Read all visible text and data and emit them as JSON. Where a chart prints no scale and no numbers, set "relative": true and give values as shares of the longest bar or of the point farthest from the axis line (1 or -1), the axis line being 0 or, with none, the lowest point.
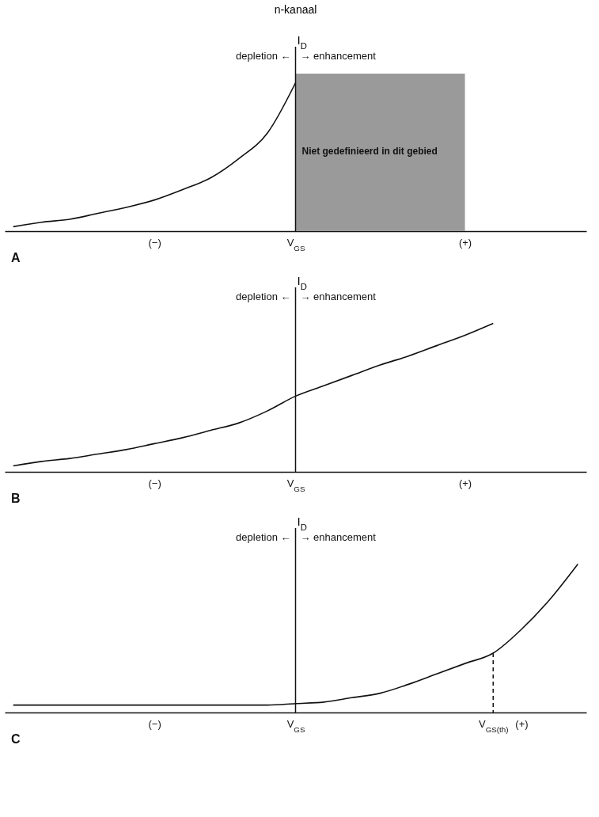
{
  "chart_data": [
    {
      "type": "line",
      "title": "n-kanaal",
      "ylabel": "I$_{D}$",
      "relative": true,
      "categories": [
        null,
        null,
        null,
        null,
        null,
        "(−)",
        null,
        null,
        null,
        null,
        "V$_{GS}$",
        null,
        null,
        null,
        null,
        null,
        "(+)",
        null,
        null,
        null,
        null
      ],
      "series": [
        {
          "color": "#111111",
          "values": [
            0.03,
            0.06,
            0.08,
            0.12,
            0.16,
            0.21,
            0.28,
            0.36,
            0.49,
            0.66,
            1,
            null,
            null,
            null,
            null,
            null,
            null,
            null,
            null,
            null,
            null
          ]
        }
      ],
      "ref_lines": [
        {
          "axis": "x",
          "value": "V$_{GS}$",
          "color": "#111111",
          "line_style": "solid"
        }
      ],
      "bands": [
        {
          "axis": "x",
          "from": "V$_{GS}$",
          "to": "(+)",
          "label": "Niet gedefinieerd in dit gebied",
          "color": "#9a9a9a"
        }
      ],
      "annotations": [
        "depletion ←",
        "→ enhancement",
        "A"
      ]
    },
    {
      "type": "line",
      "ylabel": "I$_{D}$",
      "relative": true,
      "categories": [
        null,
        null,
        null,
        null,
        null,
        "(−)",
        null,
        null,
        null,
        null,
        "V$_{GS}$",
        null,
        null,
        null,
        null,
        null,
        "(+)",
        null,
        null,
        null,
        null
      ],
      "series": [
        {
          "color": "#111111",
          "values": [
            0.04,
            0.07,
            0.09,
            0.12,
            0.15,
            0.19,
            0.23,
            0.28,
            0.33,
            0.41,
            0.51,
            0.58,
            0.65,
            0.72,
            0.78,
            0.85,
            0.92,
            1,
            null,
            null,
            null
          ]
        }
      ],
      "ref_lines": [
        {
          "axis": "x",
          "value": "V$_{GS}$",
          "color": "#111111",
          "line_style": "solid"
        }
      ],
      "annotations": [
        "depletion ←",
        "→ enhancement",
        "B"
      ]
    },
    {
      "type": "line",
      "ylabel": "I$_{D}$",
      "relative": true,
      "categories": [
        null,
        null,
        null,
        null,
        null,
        "(−)",
        null,
        null,
        null,
        null,
        "V$_{GS}$",
        null,
        null,
        null,
        null,
        null,
        null,
        "V$_{GS(th)}$",
        "(+)",
        null,
        null
      ],
      "series": [
        {
          "color": "#111111",
          "values": [
            0.05,
            0.05,
            0.05,
            0.05,
            0.05,
            0.05,
            0.05,
            0.05,
            0.05,
            0.05,
            0.06,
            0.07,
            0.1,
            0.13,
            0.19,
            0.26,
            0.33,
            0.4,
            0.56,
            0.76,
            1
          ]
        }
      ],
      "ref_lines": [
        {
          "axis": "x",
          "value": "V$_{GS}$",
          "color": "#111111",
          "line_style": "solid"
        },
        {
          "axis": "x",
          "value": "V$_{GS(th)}$",
          "color": "#111111",
          "line_style": "dashed"
        }
      ],
      "annotations": [
        "depletion ←",
        "→ enhancement",
        "C"
      ]
    }
  ]
}
